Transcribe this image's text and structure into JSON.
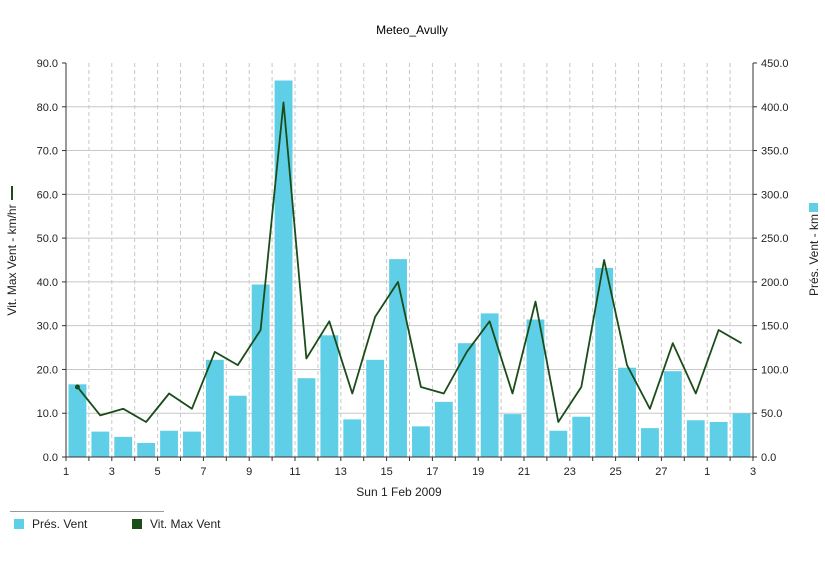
{
  "chart_data": {
    "type": "bar",
    "title": "Meteo_Avully",
    "xlabel": "Sun 1 Feb 2009",
    "y_left_label": "Vit. Max Vent - km/hr",
    "y_right_label": "Prés. Vent - km",
    "y_left_lim": [
      0,
      90
    ],
    "y_right_lim": [
      0,
      450
    ],
    "y_left_ticks": [
      "0.0",
      "10.0",
      "20.0",
      "30.0",
      "40.0",
      "50.0",
      "60.0",
      "70.0",
      "80.0",
      "90.0"
    ],
    "y_right_ticks": [
      "0.0",
      "50.0",
      "100.0",
      "150.0",
      "200.0",
      "250.0",
      "300.0",
      "350.0",
      "400.0",
      "450.0"
    ],
    "x_tick_labels": [
      "1",
      "3",
      "5",
      "7",
      "9",
      "11",
      "13",
      "15",
      "17",
      "19",
      "21",
      "23",
      "25",
      "27",
      "1",
      "3"
    ],
    "grid": true,
    "legend_position": "bottom-left",
    "colors": {
      "bars": "#5fcfe8",
      "line": "#1a4d1a",
      "grid": "#c8c8c8"
    },
    "series": [
      {
        "name": "Prés. Vent",
        "axis": "right",
        "type": "bar",
        "values": [
          83,
          29,
          23,
          16,
          30,
          29,
          111,
          70,
          197,
          430,
          90,
          139,
          43,
          111,
          226,
          35,
          63,
          130,
          164,
          49,
          157,
          30,
          46,
          216,
          102,
          33,
          98,
          42,
          40,
          50
        ]
      },
      {
        "name": "Vit. Max Vent",
        "axis": "left",
        "type": "line",
        "values": [
          16,
          9.5,
          11,
          8,
          14.5,
          11,
          24,
          21,
          29,
          81,
          22.5,
          31,
          14.5,
          32,
          40,
          16,
          14.5,
          24,
          31,
          14.5,
          35.5,
          8,
          16,
          45,
          21,
          11,
          26,
          14.5,
          29,
          26
        ]
      }
    ]
  }
}
